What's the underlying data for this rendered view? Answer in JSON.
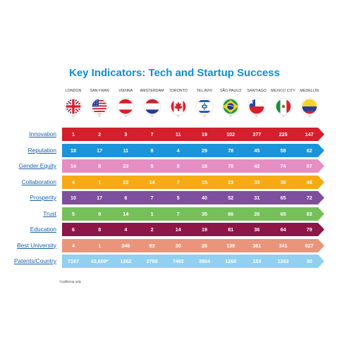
{
  "title": "Key Indicators: Tech and Startup Success",
  "footnote": "*California only",
  "cities": [
    "LONDON",
    "SAN FRAN",
    "VIENNA",
    "AMSTERDAM",
    "TORONTO",
    "TEL AVIV",
    "SÃO PAULO",
    "SANTIAGO",
    "MEXICO CITY",
    "MEDELLÍN"
  ],
  "flag_icons": [
    "uk-flag-icon",
    "usa-flag-icon",
    "austria-flag-icon",
    "netherlands-flag-icon",
    "canada-flag-icon",
    "israel-flag-icon",
    "brazil-flag-icon",
    "chile-flag-icon",
    "mexico-flag-icon",
    "colombia-flag-icon"
  ],
  "chart_data": {
    "type": "table",
    "title": "Key Indicators: Tech and Startup Success",
    "columns": [
      "LONDON",
      "SAN FRAN",
      "VIENNA",
      "AMSTERDAM",
      "TORONTO",
      "TEL AVIV",
      "SÃO PAULO",
      "SANTIAGO",
      "MEXICO CITY",
      "MEDELLÍN"
    ],
    "rows": [
      {
        "label": "Innovation",
        "color": "#d41f2c",
        "values": [
          "1",
          "2",
          "3",
          "7",
          "11",
          "19",
          "102",
          "377",
          "225",
          "147"
        ]
      },
      {
        "label": "Reputation",
        "color": "#1b94d9",
        "values": [
          "18",
          "17",
          "11",
          "8",
          "4",
          "29",
          "78",
          "45",
          "58",
          "62"
        ]
      },
      {
        "label": "Gender Equity",
        "color": "#e48ec4",
        "values": [
          "14",
          "8",
          "23",
          "5",
          "9",
          "18",
          "75",
          "42",
          "74",
          "97"
        ]
      },
      {
        "label": "Collaboration",
        "color": "#f6ab14",
        "values": [
          "4",
          "1",
          "22",
          "14",
          "7",
          "15",
          "23",
          "33",
          "36",
          "46"
        ]
      },
      {
        "label": "Prosperity",
        "color": "#7e4f9d",
        "values": [
          "10",
          "17",
          "6",
          "7",
          "5",
          "40",
          "52",
          "31",
          "65",
          "72"
        ]
      },
      {
        "label": "Trust",
        "color": "#76c05c",
        "values": [
          "5",
          "9",
          "14",
          "1",
          "7",
          "35",
          "66",
          "26",
          "65",
          "83"
        ]
      },
      {
        "label": "Education",
        "color": "#8d1548",
        "values": [
          "6",
          "8",
          "4",
          "2",
          "14",
          "19",
          "81",
          "36",
          "64",
          "79"
        ]
      },
      {
        "label": "Best University",
        "color": "#e8957c",
        "values": [
          "4",
          "1",
          "246",
          "83",
          "30",
          "26",
          "138",
          "381",
          "341",
          "627"
        ]
      },
      {
        "label": "Patents/Country",
        "color": "#92d0ef",
        "values": [
          "7167",
          "43,609*",
          "1262",
          "2788",
          "7492",
          "3804",
          "1260",
          "153",
          "1262",
          "30"
        ]
      }
    ]
  }
}
